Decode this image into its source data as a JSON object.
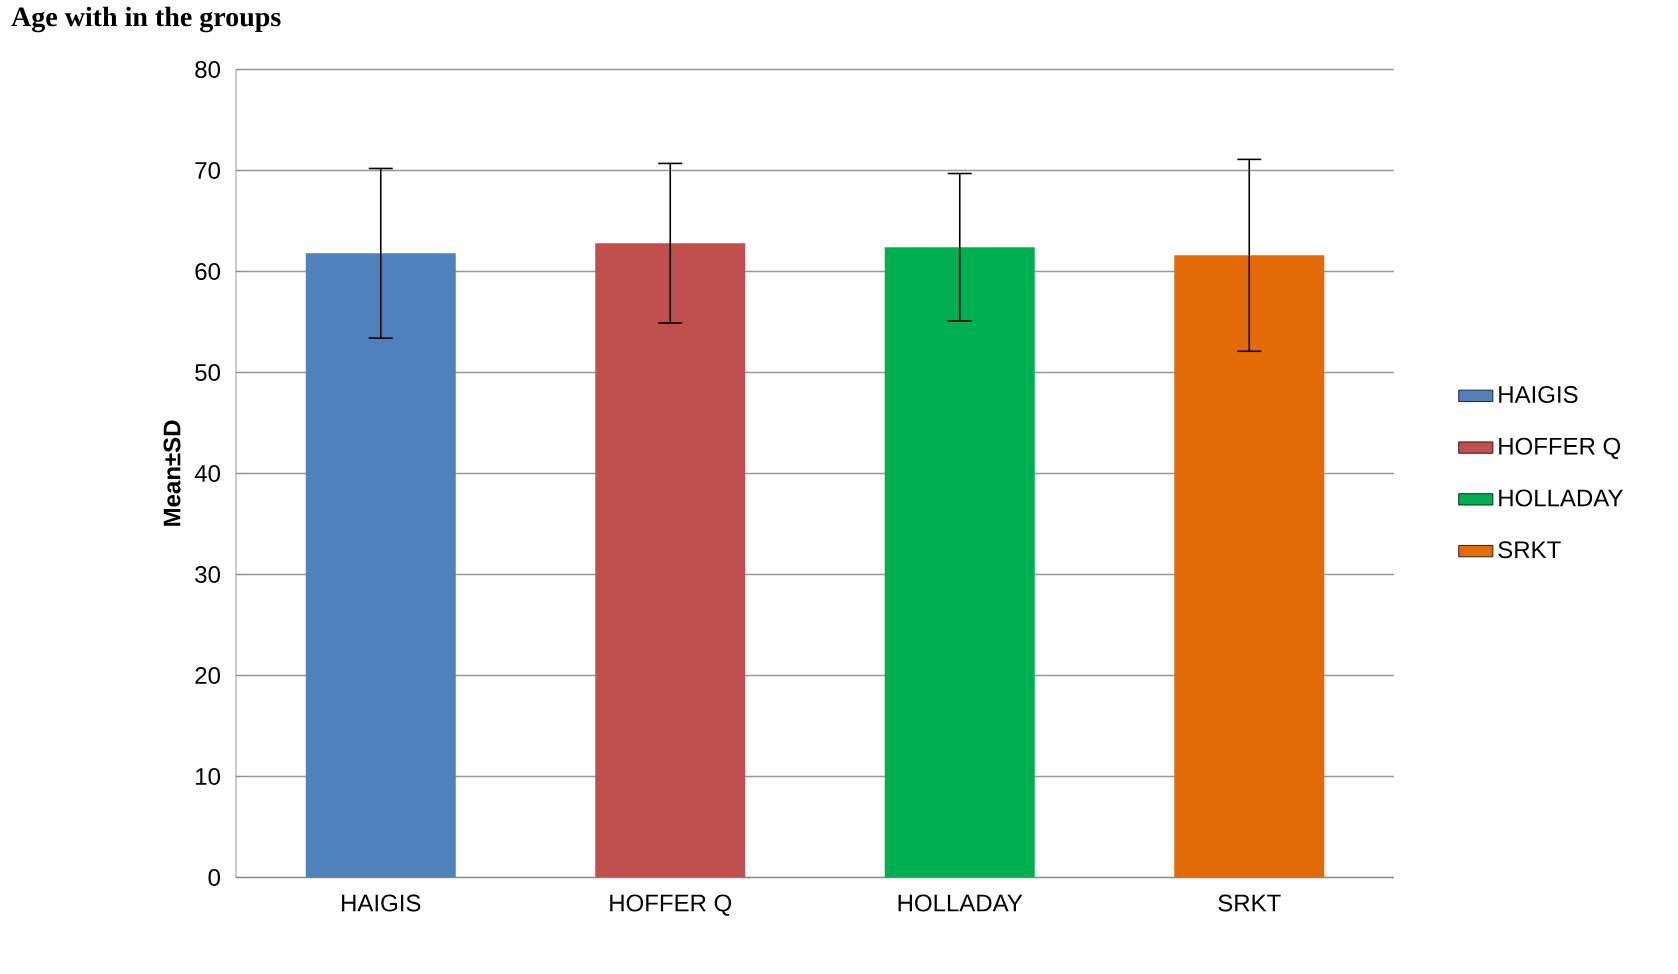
{
  "chart_data": {
    "type": "bar",
    "title": "Age with in the groups",
    "ylabel": "Mean±SD",
    "categories": [
      "HAIGIS",
      "HOFFER Q",
      "HOLLADAY",
      "SRKT"
    ],
    "series": [
      {
        "name": "HAIGIS",
        "color": "#4f81bd",
        "values": [
          61.8,
          null,
          null,
          null
        ],
        "errors": [
          8.4,
          null,
          null,
          null
        ]
      },
      {
        "name": "HOFFER Q",
        "color": "#c0504d",
        "values": [
          null,
          62.8,
          null,
          null
        ],
        "errors": [
          null,
          7.9,
          null,
          null
        ]
      },
      {
        "name": "HOLLADAY",
        "color": "#00b050",
        "values": [
          null,
          null,
          62.4,
          null
        ],
        "errors": [
          null,
          null,
          7.3,
          null
        ]
      },
      {
        "name": "SRKT",
        "color": "#e36c09",
        "values": [
          null,
          null,
          null,
          61.6
        ],
        "errors": [
          null,
          null,
          null,
          9.5
        ]
      }
    ],
    "ylim": [
      0,
      80
    ],
    "yticks": [
      0,
      10,
      20,
      30,
      40,
      50,
      60,
      70,
      80
    ],
    "grid": "y",
    "legend": "right"
  }
}
